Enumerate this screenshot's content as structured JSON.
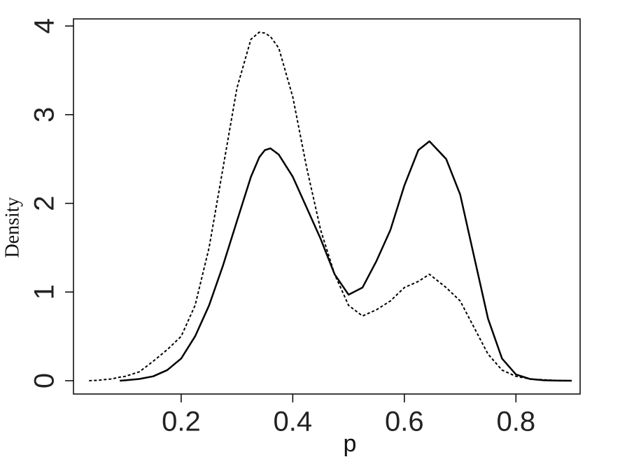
{
  "chart_data": {
    "type": "line",
    "xlabel": "p",
    "ylabel": "Density",
    "x": [
      0.035,
      0.05,
      0.075,
      0.09,
      0.1,
      0.125,
      0.15,
      0.175,
      0.2,
      0.225,
      0.25,
      0.275,
      0.3,
      0.325,
      0.34,
      0.35,
      0.36,
      0.375,
      0.4,
      0.425,
      0.45,
      0.475,
      0.5,
      0.525,
      0.55,
      0.575,
      0.6,
      0.625,
      0.645,
      0.675,
      0.7,
      0.725,
      0.75,
      0.775,
      0.8,
      0.825,
      0.85,
      0.875,
      0.9
    ],
    "series": [
      {
        "color": "#000000",
        "style": "solid",
        "values": [
          null,
          null,
          null,
          0,
          0.005,
          0.02,
          0.05,
          0.12,
          0.25,
          0.5,
          0.85,
          1.3,
          1.8,
          2.3,
          2.52,
          2.6,
          2.62,
          2.55,
          2.3,
          1.95,
          1.6,
          1.2,
          0.97,
          1.05,
          1.35,
          1.7,
          2.2,
          2.6,
          2.7,
          2.5,
          2.1,
          1.4,
          0.7,
          0.25,
          0.07,
          0.02,
          0.005,
          0.001,
          0
        ]
      },
      {
        "color": "#000000",
        "style": "dotted",
        "values": [
          0,
          0.005,
          0.02,
          0.04,
          0.05,
          0.1,
          0.22,
          0.35,
          0.5,
          0.85,
          1.5,
          2.4,
          3.3,
          3.85,
          3.93,
          3.92,
          3.88,
          3.75,
          3.2,
          2.4,
          1.7,
          1.2,
          0.85,
          0.73,
          0.8,
          0.9,
          1.05,
          1.12,
          1.2,
          1.05,
          0.9,
          0.6,
          0.3,
          0.12,
          0.05,
          0.02,
          0.01,
          0.003,
          0
        ]
      }
    ],
    "xlim": [
      0.007,
      0.915
    ],
    "xticks": [
      0.2,
      0.4,
      0.6,
      0.8
    ],
    "ylim": [
      -0.15,
      4.08
    ],
    "yticks": [
      0,
      1,
      2,
      3,
      4
    ]
  }
}
